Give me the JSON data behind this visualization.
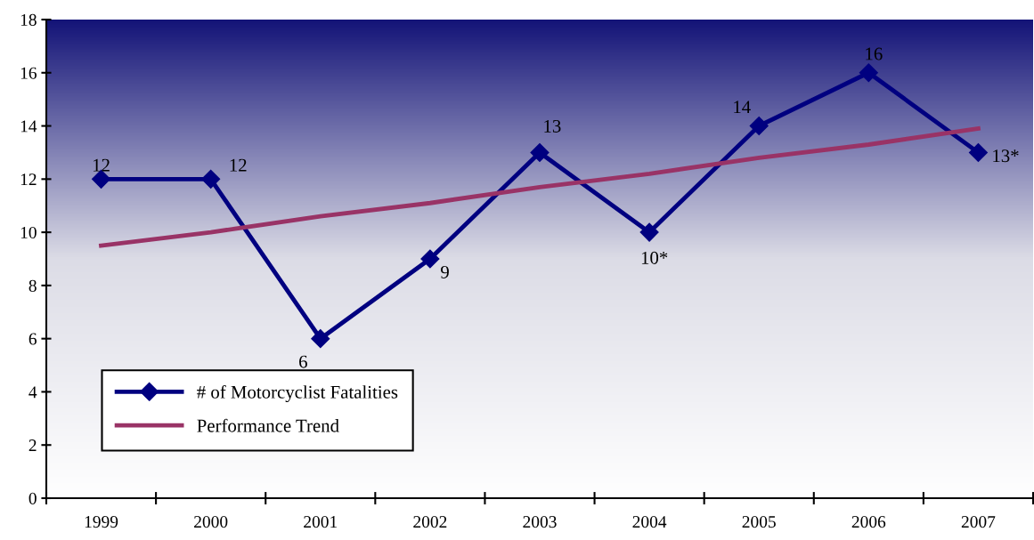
{
  "chart_data": {
    "type": "line",
    "categories": [
      "1999",
      "2000",
      "2001",
      "2002",
      "2003",
      "2004",
      "2005",
      "2006",
      "2007"
    ],
    "series": [
      {
        "name": "# of Motorcyclist Fatalities",
        "color": "#000080",
        "marker": "diamond",
        "values": [
          12,
          12,
          6,
          9,
          13,
          10,
          14,
          16,
          13
        ],
        "value_labels": [
          "12",
          "12",
          "6",
          "9",
          "13",
          "10*",
          "14",
          "16",
          "13*"
        ]
      },
      {
        "name": "Performance Trend",
        "color": "#993366",
        "marker": "none",
        "values": [
          9.5,
          10.0,
          10.6,
          11.1,
          11.7,
          12.2,
          12.8,
          13.3,
          13.9
        ]
      }
    ],
    "ylim": [
      0,
      18
    ],
    "yticks": [
      0,
      2,
      4,
      6,
      8,
      10,
      12,
      14,
      16,
      18
    ],
    "grid": false,
    "legend": "bottom left",
    "line_style": "solid"
  }
}
